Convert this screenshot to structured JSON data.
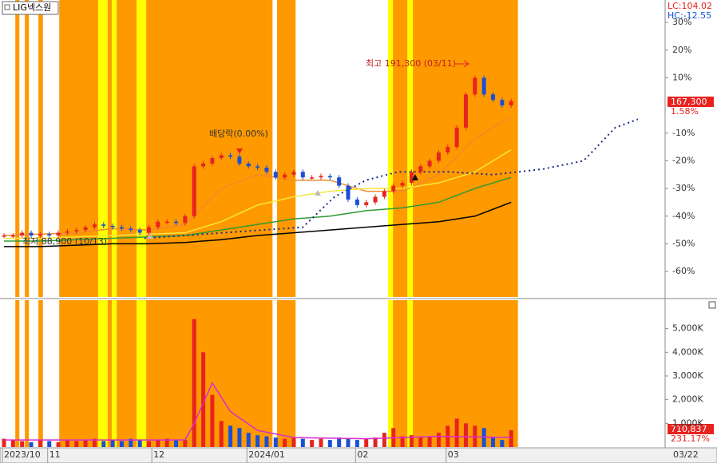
{
  "chart_data": [
    {
      "type": "candlestick",
      "title": "LIG넥스원",
      "header_labels": [
        "LC:104.02",
        "HC:-12.55"
      ],
      "x": [
        0,
        2,
        4,
        6,
        8,
        10,
        12,
        14,
        16,
        18,
        20,
        22,
        24,
        26,
        28,
        30,
        32,
        34,
        36,
        38,
        40,
        42,
        44,
        46,
        48,
        50,
        52,
        54,
        56,
        58,
        60,
        62,
        64,
        66,
        68,
        70,
        72,
        74,
        76,
        78,
        80,
        82,
        84,
        86,
        88,
        90,
        92,
        94,
        96,
        98,
        100,
        102,
        104,
        106,
        108,
        110,
        112
      ],
      "values": [
        -47,
        -47,
        -46,
        -47,
        -46.5,
        -47,
        -46,
        -45.5,
        -45,
        -44,
        -43,
        -43.5,
        -44,
        -44.5,
        -45,
        -46,
        -44,
        -42,
        -42,
        -42.5,
        -40,
        -22,
        -21,
        -19,
        -18,
        -18.5,
        -21,
        -22,
        -22.5,
        -24,
        -26,
        -25,
        -24,
        -26,
        -26,
        -25.5,
        -26,
        -29,
        -34,
        -36,
        -35,
        -33,
        -31,
        -29,
        -28,
        -24,
        -22,
        -20,
        -17,
        -15,
        -8,
        4,
        10,
        4,
        2,
        0,
        1.58
      ],
      "up_color": "#e8231f",
      "down_color": "#1a4fd6",
      "xlim": [
        0,
        146
      ],
      "ylim": [
        -69.2,
        38.1
      ],
      "yticks": [
        {
          "value": 30,
          "label": "30%"
        },
        {
          "value": 20,
          "label": "20%"
        },
        {
          "value": 10,
          "label": "10%"
        },
        {
          "value": -10,
          "label": "-10%"
        },
        {
          "value": -20,
          "label": "-20%"
        },
        {
          "value": -30,
          "label": "-30%"
        },
        {
          "value": -40,
          "label": "-40%"
        },
        {
          "value": -50,
          "label": "-50%"
        },
        {
          "value": -60,
          "label": "-60%"
        }
      ],
      "bands": [
        {
          "from": 2.5,
          "to": 3.4,
          "color": "#ff9900"
        },
        {
          "from": 4.6,
          "to": 5.5,
          "color": "#ff9900"
        },
        {
          "from": 7.6,
          "to": 8.6,
          "color": "#ff9900"
        },
        {
          "from": 12.2,
          "to": 20.8,
          "color": "#ff9900"
        },
        {
          "from": 20.8,
          "to": 22.9,
          "color": "#ffff00"
        },
        {
          "from": 22.9,
          "to": 23.8,
          "color": "#ff9900"
        },
        {
          "from": 23.8,
          "to": 24.9,
          "color": "#ffff00"
        },
        {
          "from": 24.9,
          "to": 29.3,
          "color": "#ff9900"
        },
        {
          "from": 29.3,
          "to": 31.4,
          "color": "#ffff00"
        },
        {
          "from": 31.4,
          "to": 59.3,
          "color": "#ff9900"
        },
        {
          "from": 60.3,
          "to": 64.4,
          "color": "#ff9900"
        },
        {
          "from": 84.8,
          "to": 85.9,
          "color": "#ffff00"
        },
        {
          "from": 85.9,
          "to": 89.1,
          "color": "#ff9900"
        },
        {
          "from": 89.1,
          "to": 90.3,
          "color": "#ffff00"
        },
        {
          "from": 90.3,
          "to": 113.5,
          "color": "#ff9900"
        }
      ],
      "moving_averages": [
        {
          "color": "#f08a2c",
          "x": [
            0,
            8,
            16,
            24,
            32,
            40,
            48,
            56,
            64,
            72,
            80,
            88,
            96,
            104,
            112
          ],
          "values": [
            -47,
            -46.5,
            -46,
            -44.5,
            -45,
            -43,
            -30,
            -25,
            -27,
            -27,
            -31,
            -31,
            -25,
            -12,
            -4
          ]
        },
        {
          "color": "#f5e83a",
          "x": [
            0,
            8,
            16,
            24,
            32,
            40,
            48,
            56,
            64,
            72,
            80,
            88,
            96,
            104,
            112
          ],
          "values": [
            -48,
            -48,
            -47.5,
            -47,
            -46.5,
            -46,
            -42,
            -36,
            -33,
            -31,
            -30,
            -30,
            -28,
            -24,
            -16
          ]
        },
        {
          "color": "#2e9b33",
          "x": [
            0,
            8,
            16,
            24,
            32,
            40,
            48,
            56,
            64,
            72,
            80,
            88,
            96,
            104,
            112
          ],
          "values": [
            -49,
            -49,
            -48.5,
            -48,
            -47.5,
            -47,
            -45,
            -43,
            -41,
            -40,
            -38,
            -37,
            -35,
            -30,
            -26
          ]
        },
        {
          "color": "#000000",
          "x": [
            0,
            8,
            16,
            24,
            32,
            40,
            48,
            56,
            64,
            72,
            80,
            88,
            96,
            104,
            112
          ],
          "values": [
            -51,
            -51,
            -50.5,
            -50,
            -50,
            -49.5,
            -48.5,
            -47,
            -46,
            -45,
            -44,
            -43,
            -42,
            -40,
            -35
          ]
        },
        {
          "color": "#1a2a8c",
          "style": "dotted",
          "x": [
            31,
            66,
            73,
            80,
            87,
            98,
            108,
            119,
            128,
            135,
            140
          ],
          "values": [
            -48,
            -44,
            -33,
            -27,
            -24,
            -24,
            -25,
            -23,
            -20,
            -8,
            -5
          ]
        }
      ],
      "last_price_label": "167,300",
      "last_change_label": "1.58%",
      "annotations": [
        "최고 191,300 (03/11)",
        "배당락(0.00%)",
        "최저 88,900 (10/13)"
      ]
    },
    {
      "type": "bar",
      "x": [
        0,
        2,
        4,
        6,
        8,
        10,
        12,
        14,
        16,
        18,
        20,
        22,
        24,
        26,
        28,
        30,
        32,
        34,
        36,
        38,
        40,
        42,
        44,
        46,
        48,
        50,
        52,
        54,
        56,
        58,
        60,
        62,
        64,
        66,
        68,
        70,
        72,
        74,
        76,
        78,
        80,
        82,
        84,
        86,
        88,
        90,
        92,
        94,
        96,
        98,
        100,
        102,
        104,
        106,
        108,
        110,
        112
      ],
      "values": [
        350,
        300,
        250,
        200,
        300,
        250,
        200,
        300,
        250,
        300,
        350,
        250,
        300,
        250,
        350,
        300,
        250,
        300,
        350,
        300,
        300,
        5400,
        4000,
        2200,
        1100,
        900,
        800,
        600,
        500,
        450,
        400,
        350,
        400,
        350,
        300,
        350,
        300,
        400,
        350,
        300,
        350,
        400,
        600,
        800,
        450,
        500,
        400,
        450,
        600,
        900,
        1200,
        1000,
        900,
        800,
        400,
        300,
        710.837
      ],
      "xlim": [
        0,
        146
      ],
      "ylim": [
        0,
        6200
      ],
      "yticks": [
        {
          "value": 5000,
          "label": "5,000K"
        },
        {
          "value": 4000,
          "label": "4,000K"
        },
        {
          "value": 3000,
          "label": "3,000K"
        },
        {
          "value": 2000,
          "label": "2,000K"
        },
        {
          "value": 1000,
          "label": "1,000K"
        }
      ],
      "xticks": [
        {
          "value": 0,
          "label": "2023/10"
        },
        {
          "value": 10,
          "label": "11"
        },
        {
          "value": 33,
          "label": "12"
        },
        {
          "value": 54,
          "label": "2024/01"
        },
        {
          "value": 78,
          "label": "02"
        },
        {
          "value": 98,
          "label": "03"
        }
      ],
      "last_date": "03/22",
      "moving_averages": [
        {
          "color": "#d92ad0",
          "x": [
            0,
            20,
            40,
            42,
            46,
            50,
            56,
            64,
            80,
            96,
            112
          ],
          "values": [
            300,
            300,
            300,
            1000,
            2700,
            1500,
            700,
            400,
            350,
            450,
            400
          ]
        }
      ],
      "last_volume_label": "710,837",
      "last_volume_ratio_label": "231.17%"
    }
  ]
}
